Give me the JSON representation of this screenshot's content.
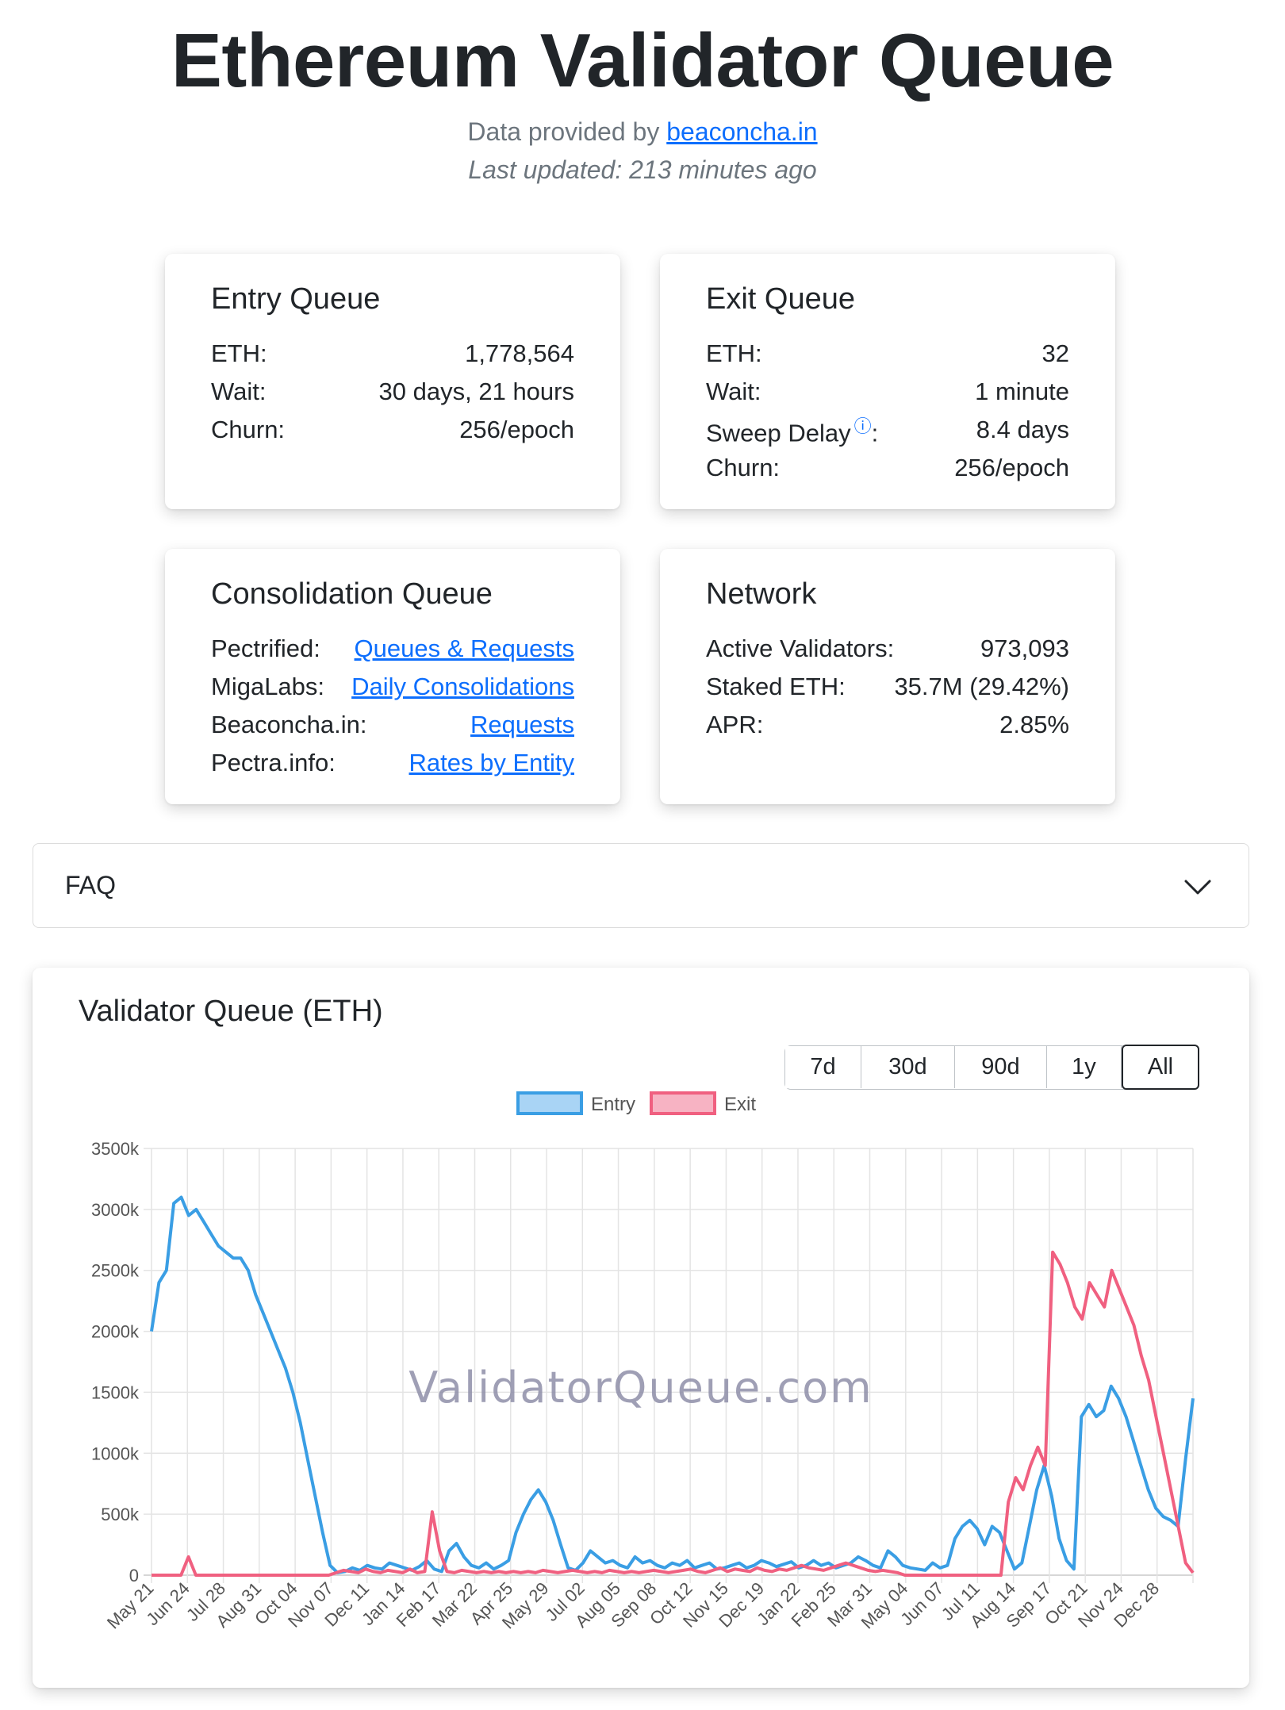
{
  "header": {
    "title": "Ethereum Validator Queue",
    "provided_prefix": "Data provided by ",
    "provider_link": "beaconcha.in",
    "last_updated": "Last updated: 213 minutes ago"
  },
  "entry_queue": {
    "title": "Entry Queue",
    "rows": [
      {
        "label": "ETH:",
        "value": "1,778,564"
      },
      {
        "label": "Wait:",
        "value": "30 days, 21 hours"
      },
      {
        "label": "Churn:",
        "value": "256/epoch"
      }
    ]
  },
  "exit_queue": {
    "title": "Exit Queue",
    "rows": [
      {
        "label": "ETH:",
        "value": "32"
      },
      {
        "label": "Wait:",
        "value": "1 minute"
      },
      {
        "label": "Sweep Delay",
        "suffix": ":",
        "value": "8.4 days",
        "info_icon": "info-circle-icon"
      },
      {
        "label": "Churn:",
        "value": "256/epoch"
      }
    ]
  },
  "consolidation_queue": {
    "title": "Consolidation Queue",
    "rows": [
      {
        "label": "Pectrified:",
        "link": "Queues & Requests"
      },
      {
        "label": "MigaLabs:",
        "link": "Daily Consolidations"
      },
      {
        "label": "Beaconcha.in:",
        "link": "Requests"
      },
      {
        "label": "Pectra.info:",
        "link": "Rates by Entity"
      }
    ]
  },
  "network": {
    "title": "Network",
    "rows": [
      {
        "label": "Active Validators:",
        "value": "973,093"
      },
      {
        "label": "Staked ETH:",
        "value": "35.7M (29.42%)"
      },
      {
        "label": "APR:",
        "value": "2.85%"
      }
    ]
  },
  "faq": {
    "label": "FAQ",
    "icon": "chevron-down-icon"
  },
  "chart_section": {
    "title": "Validator Queue (ETH)",
    "ranges": [
      "7d",
      "30d",
      "90d",
      "1y",
      "All"
    ],
    "active_range": "All",
    "watermark": "ValidatorQueue.com"
  },
  "chart_data": {
    "type": "line",
    "title": "Validator Queue (ETH)",
    "xlabel": "",
    "ylabel": "",
    "ylim": [
      0,
      3500
    ],
    "y_ticks": [
      "0",
      "500k",
      "1000k",
      "1500k",
      "2000k",
      "2500k",
      "3000k",
      "3500k"
    ],
    "x_ticks": [
      "May 21",
      "Jun 24",
      "Jul 28",
      "Aug 31",
      "Oct 04",
      "Nov 07",
      "Dec 11",
      "Jan 14",
      "Feb 17",
      "Mar 22",
      "Apr 25",
      "May 29",
      "Jul 02",
      "Aug 05",
      "Sep 08",
      "Oct 12",
      "Nov 15",
      "Dec 19",
      "Jan 22",
      "Feb 25",
      "Mar 31",
      "May 04",
      "Jun 07",
      "Jul 11",
      "Aug 14",
      "Sep 17",
      "Oct 21",
      "Nov 24",
      "Dec 28"
    ],
    "grid": true,
    "legend_position": "top",
    "series": [
      {
        "name": "Entry",
        "color": "#3a9ee4",
        "fill": "#a9d4f5",
        "values": [
          2000,
          2400,
          2500,
          3050,
          3100,
          2950,
          3000,
          2900,
          2800,
          2700,
          2650,
          2600,
          2600,
          2500,
          2300,
          2150,
          2000,
          1850,
          1700,
          1500,
          1250,
          950,
          650,
          350,
          80,
          20,
          30,
          60,
          40,
          80,
          60,
          50,
          100,
          80,
          60,
          40,
          70,
          120,
          50,
          30,
          200,
          260,
          150,
          80,
          60,
          100,
          50,
          80,
          120,
          350,
          500,
          620,
          700,
          600,
          450,
          250,
          60,
          40,
          100,
          200,
          150,
          100,
          120,
          80,
          60,
          150,
          100,
          120,
          80,
          60,
          100,
          80,
          120,
          60,
          80,
          100,
          50,
          60,
          80,
          100,
          60,
          80,
          120,
          100,
          70,
          90,
          110,
          60,
          80,
          120,
          80,
          100,
          60,
          80,
          100,
          150,
          120,
          80,
          60,
          200,
          150,
          80,
          60,
          50,
          40,
          100,
          60,
          80,
          300,
          400,
          450,
          380,
          250,
          400,
          350,
          200,
          50,
          100,
          400,
          700,
          900,
          650,
          300,
          120,
          50,
          1300,
          1400,
          1300,
          1350,
          1550,
          1450,
          1300,
          1100,
          900,
          700,
          550,
          480,
          450,
          400,
          950,
          1450
        ]
      },
      {
        "name": "Exit",
        "color": "#f06080",
        "fill": "#f7b3c3",
        "values": [
          0,
          0,
          0,
          0,
          0,
          150,
          0,
          0,
          0,
          0,
          0,
          0,
          0,
          0,
          0,
          0,
          0,
          0,
          0,
          0,
          0,
          0,
          0,
          0,
          0,
          20,
          40,
          30,
          20,
          50,
          30,
          20,
          40,
          30,
          20,
          50,
          20,
          30,
          520,
          200,
          30,
          20,
          40,
          30,
          20,
          30,
          20,
          30,
          20,
          30,
          20,
          30,
          20,
          40,
          30,
          20,
          30,
          40,
          30,
          20,
          30,
          20,
          40,
          30,
          20,
          30,
          20,
          30,
          40,
          30,
          20,
          30,
          40,
          50,
          30,
          20,
          40,
          60,
          30,
          50,
          40,
          30,
          60,
          40,
          30,
          50,
          40,
          60,
          80,
          60,
          50,
          40,
          60,
          80,
          100,
          80,
          60,
          40,
          30,
          40,
          30,
          20,
          0,
          0,
          0,
          0,
          0,
          0,
          0,
          0,
          0,
          0,
          0,
          0,
          0,
          0,
          600,
          800,
          700,
          900,
          1050,
          900,
          2650,
          2550,
          2400,
          2200,
          2100,
          2400,
          2300,
          2200,
          2500,
          2350,
          2200,
          2050,
          1800,
          1600,
          1300,
          1000,
          700,
          400,
          100,
          20
        ]
      }
    ]
  }
}
